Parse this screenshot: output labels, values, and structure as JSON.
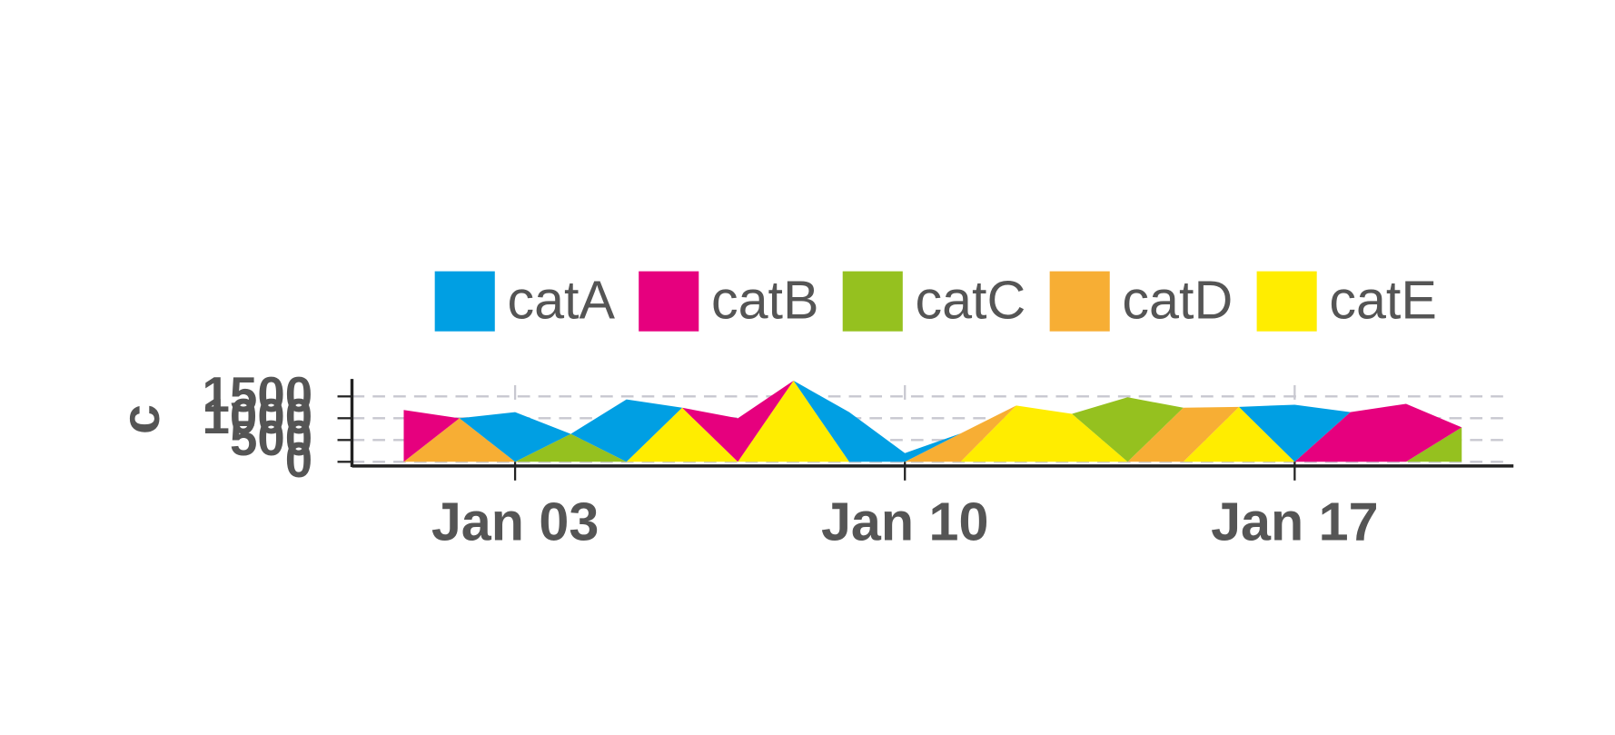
{
  "chart_data": {
    "type": "area",
    "stacked": true,
    "y_label": "c",
    "x": [
      "Jan 01",
      "Jan 02",
      "Jan 03",
      "Jan 04",
      "Jan 05",
      "Jan 06",
      "Jan 07",
      "Jan 08",
      "Jan 09",
      "Jan 10",
      "Jan 11",
      "Jan 12",
      "Jan 13",
      "Jan 14",
      "Jan 15",
      "Jan 16",
      "Jan 17",
      "Jan 18",
      "Jan 19",
      "Jan 20"
    ],
    "xticks": [
      "Jan 03",
      "Jan 10",
      "Jan 17"
    ],
    "ylim": [
      0,
      1900
    ],
    "yticks": [
      0,
      500,
      1000,
      1500
    ],
    "grid": true,
    "series": [
      {
        "name": "catA",
        "color": "#009fe3",
        "values": [
          0,
          0,
          1140,
          0,
          1430,
          0,
          0,
          0,
          1140,
          200,
          0,
          0,
          0,
          0,
          0,
          0,
          1310,
          0,
          0,
          0
        ]
      },
      {
        "name": "catB",
        "color": "#e6007e",
        "values": [
          1190,
          0,
          0,
          0,
          0,
          0,
          1000,
          0,
          0,
          0,
          0,
          0,
          0,
          0,
          0,
          0,
          0,
          1140,
          1330,
          0
        ]
      },
      {
        "name": "catC",
        "color": "#95c11f",
        "values": [
          0,
          0,
          0,
          640,
          0,
          0,
          0,
          0,
          0,
          0,
          0,
          0,
          0,
          1480,
          0,
          0,
          0,
          0,
          0,
          790
        ]
      },
      {
        "name": "catD",
        "color": "#f7ae34",
        "values": [
          0,
          1000,
          0,
          0,
          0,
          0,
          0,
          0,
          0,
          0,
          650,
          0,
          0,
          0,
          1240,
          0,
          0,
          0,
          0,
          0
        ]
      },
      {
        "name": "catE",
        "color": "#ffed00",
        "values": [
          0,
          0,
          0,
          0,
          0,
          1240,
          0,
          1860,
          0,
          0,
          0,
          1290,
          1100,
          0,
          0,
          1260,
          0,
          0,
          0,
          0
        ]
      }
    ]
  }
}
